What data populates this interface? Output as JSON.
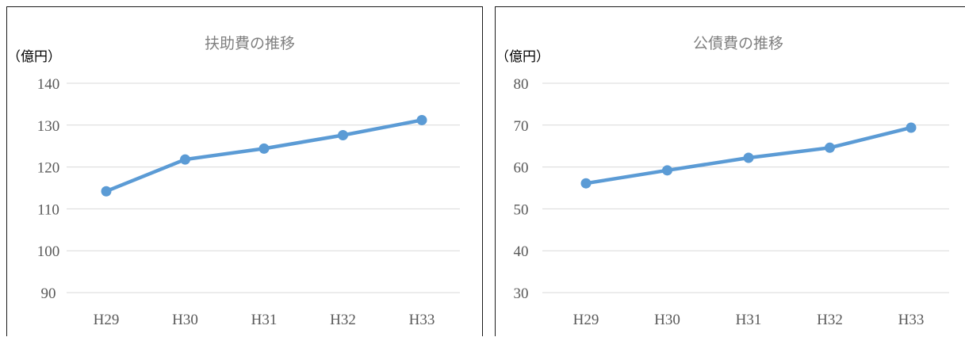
{
  "chart_data": [
    {
      "type": "line",
      "title": "扶助費の推移",
      "ylabel": "（億円）",
      "categories": [
        "H29",
        "H30",
        "H31",
        "H32",
        "H33"
      ],
      "series": [
        {
          "values": [
            114.2,
            121.8,
            124.4,
            127.6,
            131.2
          ]
        }
      ],
      "ylim": [
        90,
        140
      ],
      "yticks": [
        140,
        130,
        120,
        110,
        100,
        90
      ],
      "grid": true,
      "color": "#5b9bd5"
    },
    {
      "type": "line",
      "title": "公債費の推移",
      "ylabel": "（億円）",
      "categories": [
        "H29",
        "H30",
        "H31",
        "H32",
        "H33"
      ],
      "series": [
        {
          "values": [
            56.1,
            59.2,
            62.2,
            64.6,
            69.4
          ]
        }
      ],
      "ylim": [
        30,
        80
      ],
      "yticks": [
        80,
        70,
        60,
        50,
        40,
        30
      ],
      "grid": true,
      "color": "#5b9bd5"
    }
  ]
}
